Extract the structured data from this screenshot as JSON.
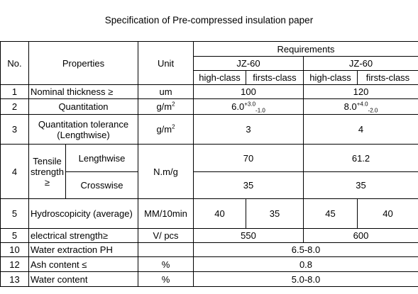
{
  "title": "Specification of Pre-compressed insulation paper",
  "header": {
    "no": "No.",
    "properties": "Properties",
    "unit": "Unit",
    "requirements": "Requirements",
    "grade_a": "JZ-60",
    "grade_b": "JZ-60",
    "high_class": "high-class",
    "first_class": "firsts-class"
  },
  "rows": {
    "r1": {
      "no": "1",
      "prop": "Nominal thickness ≥",
      "unit": "um",
      "a": "100",
      "b": "120"
    },
    "r2": {
      "no": "2",
      "prop": "Quantitation",
      "unit": "g/m",
      "unit_sup": "2",
      "a_base": "6.0",
      "a_plus": "+3.0",
      "a_minus": "-1.0",
      "b_base": "8.0",
      "b_plus": "+4.0",
      "b_minus": "-2.0"
    },
    "r3": {
      "no": "3",
      "prop": "Quantitation tolerance (Lengthwise)",
      "unit": "g/m",
      "unit_sup": "2",
      "a": "3",
      "b": "4"
    },
    "r4": {
      "no": "4",
      "prop": "Tensile strength ≥",
      "sub_len": "Lengthwise",
      "sub_cross": "Crosswise",
      "unit": "N.m/g",
      "len_a": "70",
      "len_b": "61.2",
      "cross_a": "35",
      "cross_b": "35"
    },
    "r5": {
      "no": "5",
      "prop": "Hydroscopicity (average)",
      "unit": "MM/10min",
      "v1": "40",
      "v2": "35",
      "v3": "45",
      "v4": "40"
    },
    "r6": {
      "no": "5",
      "prop": "electrical strength≥",
      "unit": "V/ pcs",
      "a": "550",
      "b": "600"
    },
    "r7": {
      "no": "10",
      "prop": "Water extraction PH",
      "unit": "",
      "v": "6.5-8.0"
    },
    "r8": {
      "no": "12",
      "prop": "Ash content ≤",
      "unit": "%",
      "v": "0.8"
    },
    "r9": {
      "no": "13",
      "prop": "Water content",
      "unit": "%",
      "v": "5.0-8.0"
    }
  }
}
